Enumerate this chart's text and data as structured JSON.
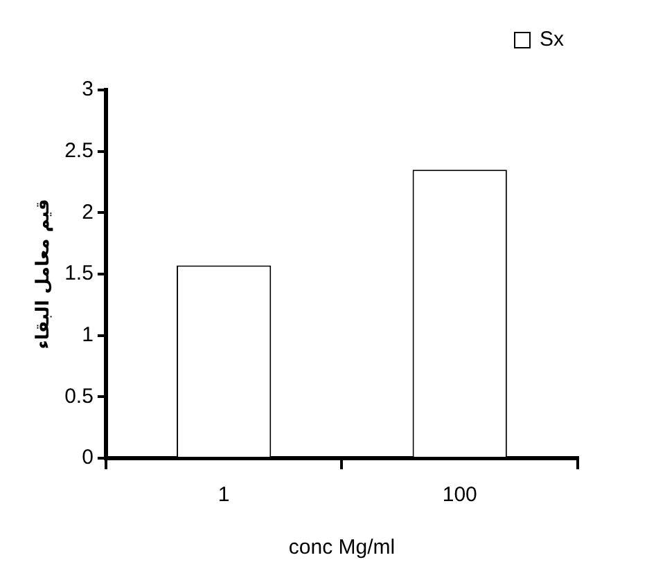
{
  "chart_data": {
    "type": "bar",
    "xlabel": "conc Mg/ml",
    "ylabel": "قيم معامل البقاء",
    "categories": [
      "1",
      "100"
    ],
    "series": [
      {
        "name": "Sx",
        "color": "#ffffff",
        "values": [
          1.57,
          2.35
        ]
      }
    ],
    "ylim": [
      0,
      3
    ],
    "yticks": [
      0,
      0.5,
      1,
      1.5,
      2,
      2.5,
      3
    ],
    "grid": false,
    "legend": "top right"
  }
}
